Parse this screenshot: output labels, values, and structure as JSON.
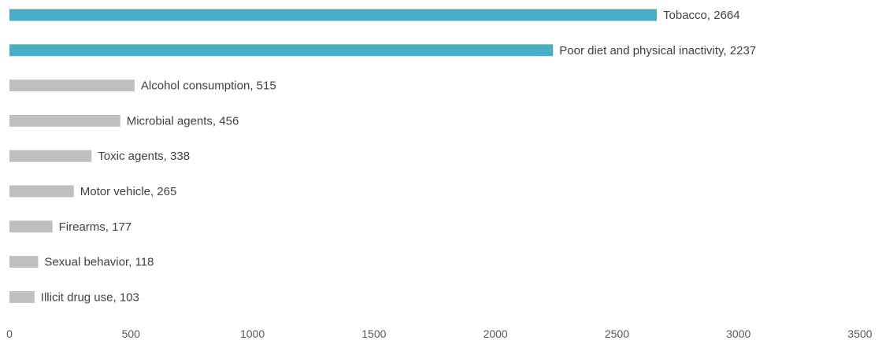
{
  "chart_data": {
    "type": "bar",
    "orientation": "horizontal",
    "title": "",
    "xlabel": "",
    "ylabel": "",
    "xlim": [
      0,
      3500
    ],
    "xticks": [
      0,
      500,
      1000,
      1500,
      2000,
      2500,
      3000,
      3500
    ],
    "grid": false,
    "legend": "none",
    "label_format": "{category}, {value}",
    "colors": {
      "highlight": "#4BACC6",
      "default": "#BFBFBF"
    },
    "bars": [
      {
        "category": "Tobacco",
        "value": 2664,
        "highlight": true
      },
      {
        "category": "Poor diet and physical inactivity",
        "value": 2237,
        "highlight": true
      },
      {
        "category": "Alcohol consumption",
        "value": 515,
        "highlight": false
      },
      {
        "category": "Microbial agents",
        "value": 456,
        "highlight": false
      },
      {
        "category": "Toxic agents",
        "value": 338,
        "highlight": false
      },
      {
        "category": "Motor vehicle",
        "value": 265,
        "highlight": false
      },
      {
        "category": "Firearms",
        "value": 177,
        "highlight": false
      },
      {
        "category": "Sexual behavior",
        "value": 118,
        "highlight": false
      },
      {
        "category": "Illicit drug use",
        "value": 103,
        "highlight": false
      }
    ]
  }
}
